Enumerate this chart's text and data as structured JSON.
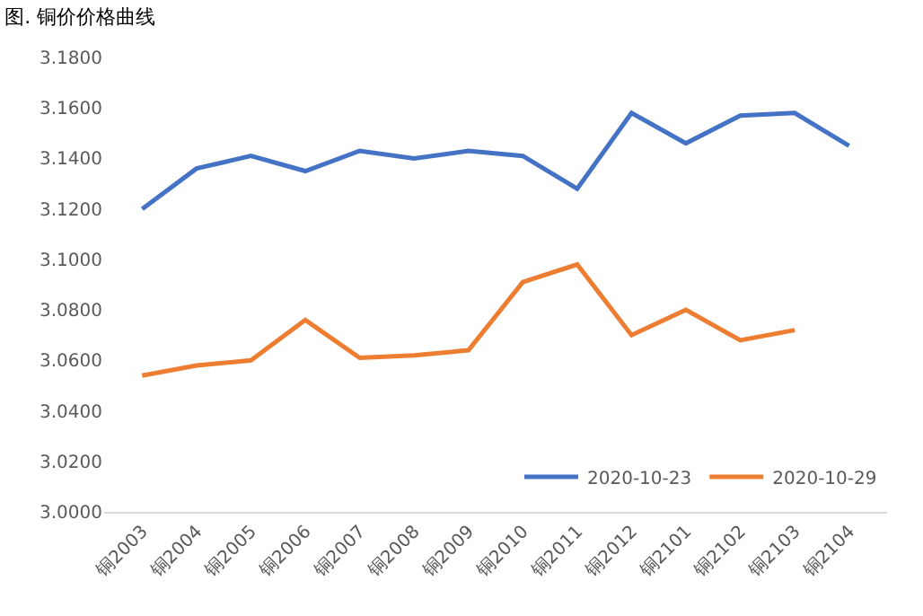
{
  "chart_data": {
    "type": "line",
    "title": "图. 铜价价格曲线",
    "categories": [
      "铜2003",
      "铜2004",
      "铜2005",
      "铜2006",
      "铜2007",
      "铜2008",
      "铜2009",
      "铜2010",
      "铜2011",
      "铜2012",
      "铜2101",
      "铜2102",
      "铜2103",
      "铜2104"
    ],
    "series": [
      {
        "name": "2020-10-23",
        "color": "#4472c4",
        "values": [
          3.12,
          3.136,
          3.141,
          3.135,
          3.143,
          3.14,
          3.143,
          3.141,
          3.128,
          3.158,
          3.146,
          3.157,
          3.158,
          3.145
        ]
      },
      {
        "name": "2020-10-29",
        "color": "#ed7d31",
        "values": [
          3.054,
          3.058,
          3.06,
          3.076,
          3.061,
          3.062,
          3.064,
          3.091,
          3.098,
          3.07,
          3.08,
          3.068,
          3.072,
          null
        ]
      }
    ],
    "ylim": [
      3.0,
      3.18
    ],
    "yticks": [
      {
        "value": 3.0,
        "label": "3.0000"
      },
      {
        "value": 3.02,
        "label": "3.0200"
      },
      {
        "value": 3.04,
        "label": "3.0400"
      },
      {
        "value": 3.06,
        "label": "3.0600"
      },
      {
        "value": 3.08,
        "label": "3.0800"
      },
      {
        "value": 3.1,
        "label": "3.1000"
      },
      {
        "value": 3.12,
        "label": "3.1200"
      },
      {
        "value": 3.14,
        "label": "3.1400"
      },
      {
        "value": 3.16,
        "label": "3.1600"
      },
      {
        "value": 3.18,
        "label": "3.1800"
      }
    ],
    "grid": false,
    "legend": "bottom right",
    "marker": "none",
    "line_style": "solid"
  }
}
